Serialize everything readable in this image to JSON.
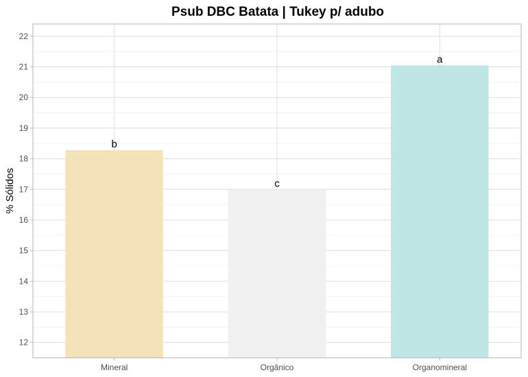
{
  "chart_data": {
    "type": "bar",
    "title": "Psub DBC Batata | Tukey p/ adubo",
    "xlabel": "",
    "ylabel": "% Sólidos",
    "categories": [
      "Mineral",
      "Orgânico",
      "Organomineral"
    ],
    "values": [
      18.28,
      16.99,
      21.05
    ],
    "bar_labels": [
      "b",
      "c",
      "a"
    ],
    "colors": [
      "#f4e3b8",
      "#f0f0f0",
      "#bfe6e2"
    ],
    "ylim": [
      11.5,
      22.4
    ],
    "yticks": [
      "12",
      "13",
      "14",
      "15",
      "16",
      "17",
      "18",
      "19",
      "20",
      "21",
      "22"
    ],
    "grid": true,
    "legend": "none"
  }
}
